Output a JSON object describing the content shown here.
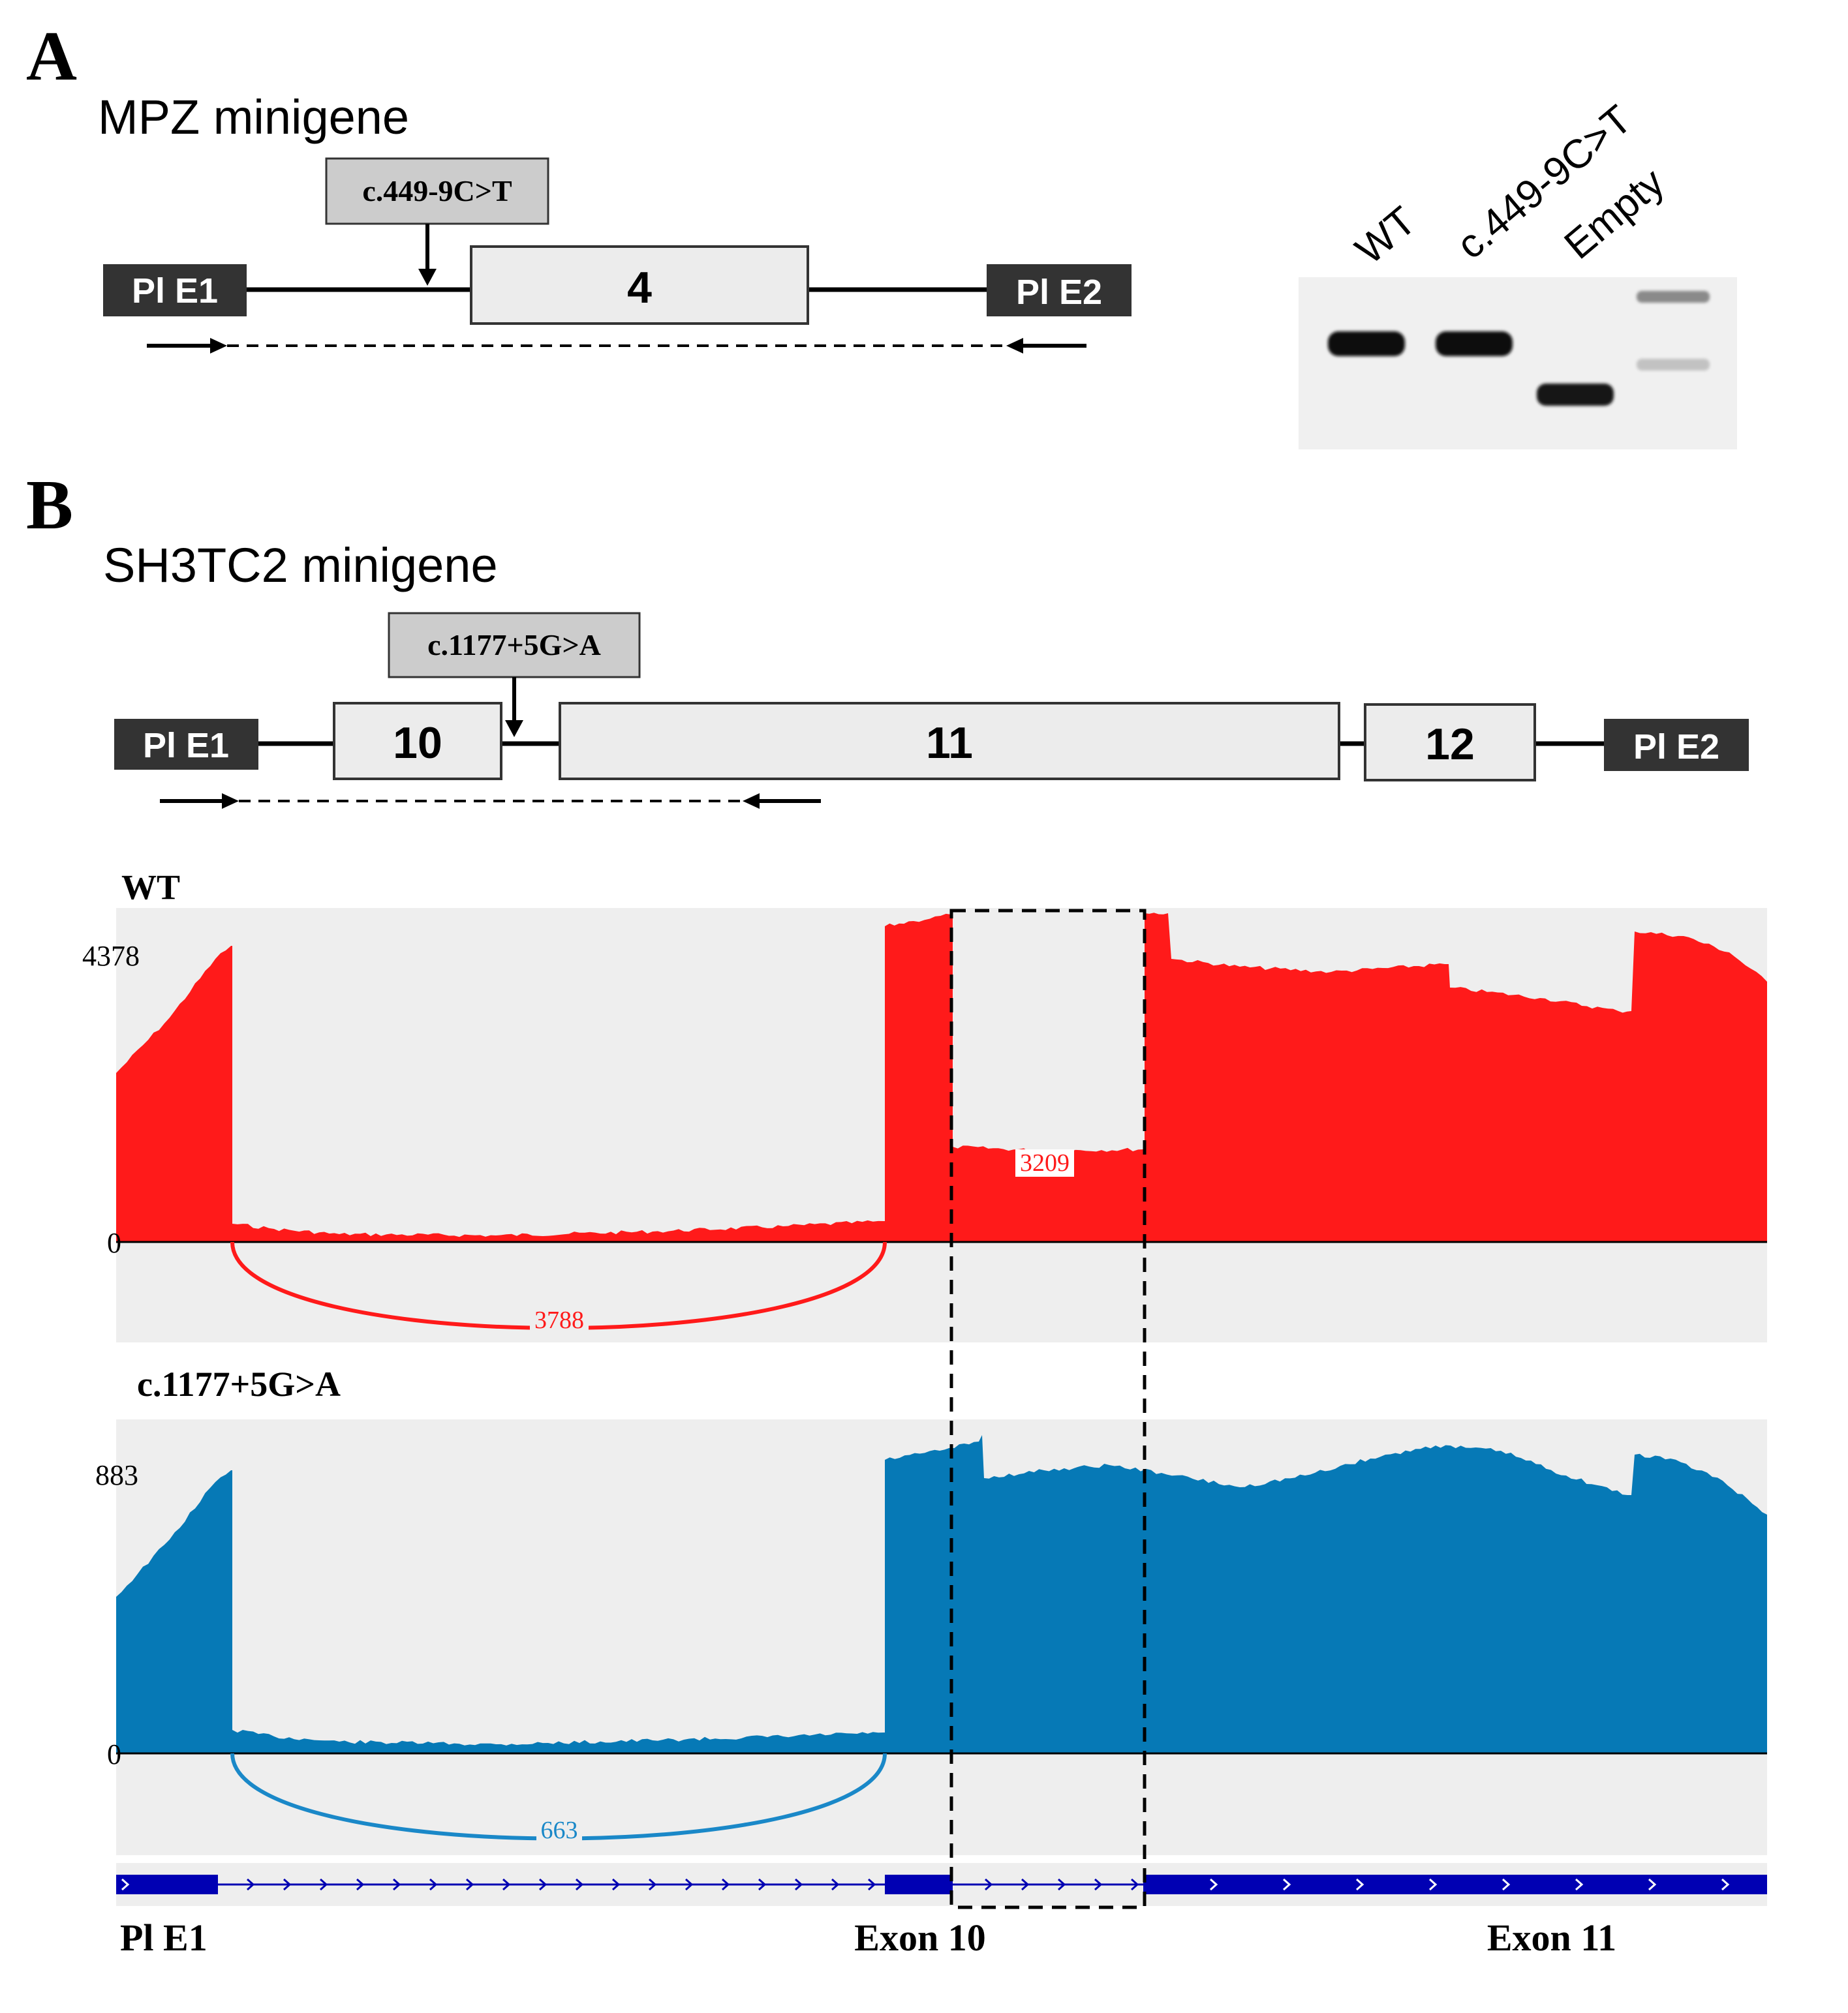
{
  "panel_a": {
    "letter": "A",
    "title": "MPZ minigene",
    "mutation": "c.449-9C>T",
    "exon_left": "Pl E1",
    "exon_middle": "4",
    "exon_right": "Pl E2",
    "gel": {
      "lanes": [
        "WT",
        "c.449-9C>T",
        "Empty"
      ],
      "bands": [
        {
          "lane": "WT",
          "size": "large",
          "intensity": "strong"
        },
        {
          "lane": "c.449-9C>T",
          "size": "large",
          "intensity": "strong"
        },
        {
          "lane": "Empty",
          "size": "small",
          "intensity": "strong"
        },
        {
          "lane": "ladder",
          "size": "ladder",
          "intensity": "faint"
        }
      ]
    }
  },
  "panel_b": {
    "letter": "B",
    "title": "SH3TC2 minigene",
    "mutation": "c.1177+5G>A",
    "exons": [
      "Pl E1",
      "10",
      "11",
      "12",
      "Pl E2"
    ],
    "tracks": [
      {
        "name": "WT",
        "color": "#ff1a1a",
        "max_label": "4378",
        "zero_label": "0",
        "junction_count": "3788",
        "box_label": "3209"
      },
      {
        "name": "c.1177+5G>A",
        "color": "#0679b6",
        "max_label": "883",
        "zero_label": "0",
        "junction_count": "663"
      }
    ],
    "gene_labels": [
      "Pl E1",
      "Exon 10",
      "Exon 11"
    ]
  },
  "colors": {
    "exon_dark": "#333333",
    "exon_light": "#ececec",
    "track_bg": "#eeeeee",
    "gene_track": "#0000b3"
  }
}
